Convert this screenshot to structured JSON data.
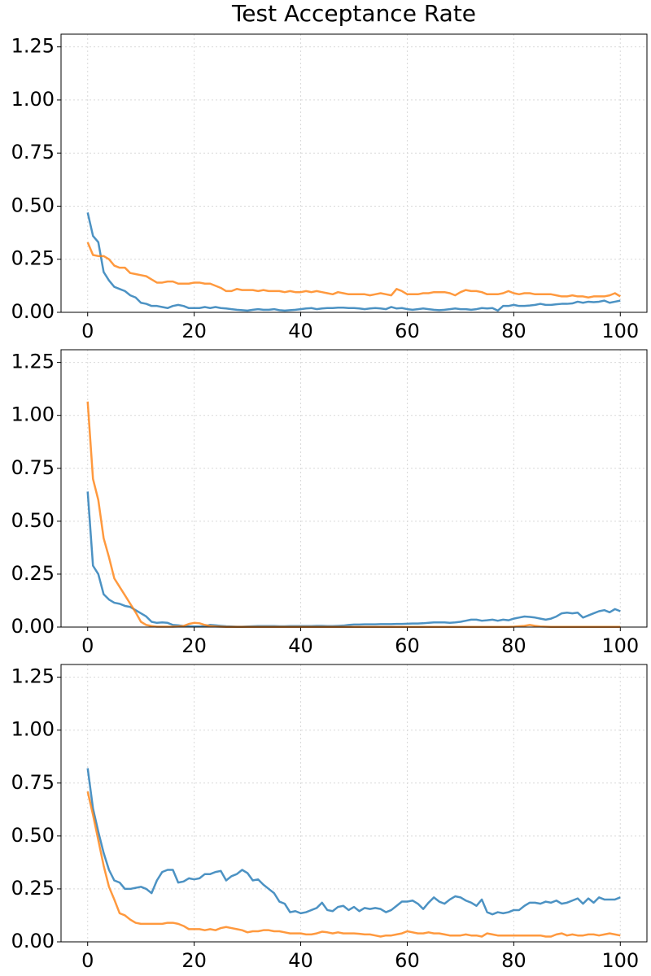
{
  "chart_data": [
    {
      "type": "line",
      "title": "Test Acceptance Rate",
      "x": [
        0,
        1,
        2,
        3,
        4,
        5,
        6,
        7,
        8,
        9,
        10,
        11,
        12,
        13,
        14,
        15,
        16,
        17,
        18,
        19,
        20,
        21,
        22,
        23,
        24,
        25,
        26,
        27,
        28,
        29,
        30,
        31,
        32,
        33,
        34,
        35,
        36,
        37,
        38,
        39,
        40,
        41,
        42,
        43,
        44,
        45,
        46,
        47,
        48,
        49,
        50,
        51,
        52,
        53,
        54,
        55,
        56,
        57,
        58,
        59,
        60,
        61,
        62,
        63,
        64,
        65,
        66,
        67,
        68,
        69,
        70,
        71,
        72,
        73,
        74,
        75,
        76,
        77,
        78,
        79,
        80,
        81,
        82,
        83,
        84,
        85,
        86,
        87,
        88,
        89,
        90,
        91,
        92,
        93,
        94,
        95,
        96,
        97,
        98,
        99,
        100
      ],
      "series": [
        {
          "color": "#1f77b4",
          "values": [
            0.47,
            0.36,
            0.33,
            0.19,
            0.15,
            0.12,
            0.11,
            0.1,
            0.08,
            0.07,
            0.045,
            0.04,
            0.03,
            0.03,
            0.025,
            0.02,
            0.03,
            0.035,
            0.03,
            0.02,
            0.02,
            0.02,
            0.025,
            0.02,
            0.025,
            0.02,
            0.018,
            0.015,
            0.012,
            0.01,
            0.008,
            0.012,
            0.015,
            0.012,
            0.012,
            0.015,
            0.01,
            0.008,
            0.01,
            0.012,
            0.015,
            0.018,
            0.02,
            0.015,
            0.018,
            0.02,
            0.02,
            0.022,
            0.022,
            0.02,
            0.02,
            0.018,
            0.015,
            0.018,
            0.02,
            0.018,
            0.015,
            0.025,
            0.018,
            0.02,
            0.015,
            0.012,
            0.015,
            0.018,
            0.015,
            0.012,
            0.01,
            0.012,
            0.015,
            0.018,
            0.015,
            0.015,
            0.012,
            0.015,
            0.02,
            0.018,
            0.02,
            0.008,
            0.03,
            0.03,
            0.035,
            0.03,
            0.03,
            0.032,
            0.035,
            0.04,
            0.035,
            0.035,
            0.038,
            0.04,
            0.04,
            0.042,
            0.05,
            0.045,
            0.05,
            0.048,
            0.05,
            0.055,
            0.045,
            0.05,
            0.055
          ]
        },
        {
          "color": "#ff7f0e",
          "values": [
            0.33,
            0.27,
            0.265,
            0.265,
            0.25,
            0.22,
            0.21,
            0.21,
            0.185,
            0.18,
            0.175,
            0.17,
            0.155,
            0.14,
            0.14,
            0.145,
            0.145,
            0.135,
            0.135,
            0.135,
            0.14,
            0.14,
            0.135,
            0.135,
            0.125,
            0.115,
            0.1,
            0.1,
            0.11,
            0.105,
            0.105,
            0.105,
            0.1,
            0.105,
            0.1,
            0.1,
            0.1,
            0.095,
            0.1,
            0.095,
            0.095,
            0.1,
            0.095,
            0.1,
            0.095,
            0.09,
            0.085,
            0.095,
            0.09,
            0.085,
            0.085,
            0.085,
            0.085,
            0.08,
            0.085,
            0.09,
            0.085,
            0.08,
            0.11,
            0.1,
            0.085,
            0.085,
            0.085,
            0.09,
            0.09,
            0.095,
            0.095,
            0.095,
            0.09,
            0.08,
            0.095,
            0.105,
            0.1,
            0.1,
            0.095,
            0.085,
            0.085,
            0.085,
            0.09,
            0.1,
            0.09,
            0.085,
            0.09,
            0.09,
            0.085,
            0.085,
            0.085,
            0.085,
            0.08,
            0.075,
            0.075,
            0.08,
            0.075,
            0.075,
            0.07,
            0.075,
            0.075,
            0.075,
            0.08,
            0.09,
            0.075
          ]
        }
      ],
      "xlim": [
        -5,
        105
      ],
      "ylim": [
        0,
        1.31
      ],
      "xticks": [
        0,
        20,
        40,
        60,
        80,
        100
      ],
      "yticks": [
        {
          "value": 0,
          "label": "0.00"
        },
        {
          "value": 0.25,
          "label": "0.25"
        },
        {
          "value": 0.5,
          "label": "0.50"
        },
        {
          "value": 0.75,
          "label": "0.75"
        },
        {
          "value": 1,
          "label": "1.00"
        },
        {
          "value": 1.25,
          "label": "1.25"
        }
      ],
      "grid": true
    },
    {
      "type": "line",
      "x": [
        0,
        1,
        2,
        3,
        4,
        5,
        6,
        7,
        8,
        9,
        10,
        11,
        12,
        13,
        14,
        15,
        16,
        17,
        18,
        19,
        20,
        21,
        22,
        23,
        24,
        25,
        26,
        27,
        28,
        29,
        30,
        31,
        32,
        33,
        34,
        35,
        36,
        37,
        38,
        39,
        40,
        41,
        42,
        43,
        44,
        45,
        46,
        47,
        48,
        49,
        50,
        51,
        52,
        53,
        54,
        55,
        56,
        57,
        58,
        59,
        60,
        61,
        62,
        63,
        64,
        65,
        66,
        67,
        68,
        69,
        70,
        71,
        72,
        73,
        74,
        75,
        76,
        77,
        78,
        79,
        80,
        81,
        82,
        83,
        84,
        85,
        86,
        87,
        88,
        89,
        90,
        91,
        92,
        93,
        94,
        95,
        96,
        97,
        98,
        99,
        100
      ],
      "series": [
        {
          "color": "#1f77b4",
          "values": [
            0.64,
            0.29,
            0.25,
            0.155,
            0.13,
            0.115,
            0.11,
            0.1,
            0.095,
            0.08,
            0.065,
            0.05,
            0.025,
            0.02,
            0.022,
            0.02,
            0.01,
            0.008,
            0.005,
            0.004,
            0.003,
            0.003,
            0.004,
            0.01,
            0.008,
            0.006,
            0.004,
            0.003,
            0.002,
            0.002,
            0.003,
            0.004,
            0.005,
            0.005,
            0.005,
            0.005,
            0.004,
            0.004,
            0.005,
            0.005,
            0.005,
            0.005,
            0.005,
            0.006,
            0.006,
            0.005,
            0.005,
            0.006,
            0.007,
            0.01,
            0.012,
            0.012,
            0.013,
            0.013,
            0.013,
            0.014,
            0.014,
            0.014,
            0.015,
            0.015,
            0.016,
            0.017,
            0.017,
            0.018,
            0.02,
            0.022,
            0.022,
            0.022,
            0.02,
            0.022,
            0.025,
            0.03,
            0.035,
            0.035,
            0.03,
            0.032,
            0.035,
            0.03,
            0.035,
            0.032,
            0.04,
            0.045,
            0.05,
            0.048,
            0.045,
            0.04,
            0.035,
            0.04,
            0.05,
            0.065,
            0.068,
            0.065,
            0.068,
            0.045,
            0.055,
            0.065,
            0.075,
            0.08,
            0.07,
            0.085,
            0.075
          ]
        },
        {
          "color": "#ff7f0e",
          "values": [
            1.065,
            0.7,
            0.6,
            0.42,
            0.33,
            0.23,
            0.19,
            0.15,
            0.11,
            0.07,
            0.025,
            0.01,
            0.005,
            0.002,
            0.002,
            0.002,
            0.002,
            0.003,
            0.005,
            0.015,
            0.02,
            0.018,
            0.01,
            0.005,
            0.003,
            0.002,
            0.001,
            0.001,
            0.001,
            0.001,
            0.001,
            0.001,
            0.001,
            0.001,
            0.001,
            0.001,
            0.001,
            0.001,
            0.001,
            0.001,
            0.001,
            0.001,
            0.001,
            0.001,
            0.001,
            0.001,
            0.001,
            0.001,
            0.001,
            0.001,
            0.001,
            0.001,
            0.001,
            0.001,
            0.001,
            0.001,
            0.001,
            0.001,
            0.001,
            0.001,
            0.001,
            0.001,
            0.001,
            0.001,
            0.001,
            0.001,
            0.001,
            0.001,
            0.001,
            0.001,
            0.001,
            0.001,
            0.001,
            0.001,
            0.001,
            0.001,
            0.001,
            0.001,
            0.001,
            0.001,
            0.002,
            0.004,
            0.006,
            0.01,
            0.006,
            0.003,
            0.002,
            0.001,
            0.001,
            0.001,
            0.001,
            0.001,
            0.001,
            0.001,
            0.001,
            0.001,
            0.001,
            0.001,
            0.001,
            0.001,
            0.001
          ]
        }
      ],
      "xlim": [
        -5,
        105
      ],
      "ylim": [
        0,
        1.31
      ],
      "xticks": [
        0,
        20,
        40,
        60,
        80,
        100
      ],
      "yticks": [
        {
          "value": 0,
          "label": "0.00"
        },
        {
          "value": 0.25,
          "label": "0.25"
        },
        {
          "value": 0.5,
          "label": "0.50"
        },
        {
          "value": 0.75,
          "label": "0.75"
        },
        {
          "value": 1,
          "label": "1.00"
        },
        {
          "value": 1.25,
          "label": "1.25"
        }
      ],
      "grid": true
    },
    {
      "type": "line",
      "x": [
        0,
        1,
        2,
        3,
        4,
        5,
        6,
        7,
        8,
        9,
        10,
        11,
        12,
        13,
        14,
        15,
        16,
        17,
        18,
        19,
        20,
        21,
        22,
        23,
        24,
        25,
        26,
        27,
        28,
        29,
        30,
        31,
        32,
        33,
        34,
        35,
        36,
        37,
        38,
        39,
        40,
        41,
        42,
        43,
        44,
        45,
        46,
        47,
        48,
        49,
        50,
        51,
        52,
        53,
        54,
        55,
        56,
        57,
        58,
        59,
        60,
        61,
        62,
        63,
        64,
        65,
        66,
        67,
        68,
        69,
        70,
        71,
        72,
        73,
        74,
        75,
        76,
        77,
        78,
        79,
        80,
        81,
        82,
        83,
        84,
        85,
        86,
        87,
        88,
        89,
        90,
        91,
        92,
        93,
        94,
        95,
        96,
        97,
        98,
        99,
        100
      ],
      "series": [
        {
          "color": "#1f77b4",
          "values": [
            0.82,
            0.63,
            0.52,
            0.42,
            0.34,
            0.29,
            0.28,
            0.25,
            0.25,
            0.255,
            0.26,
            0.25,
            0.23,
            0.29,
            0.33,
            0.34,
            0.34,
            0.28,
            0.285,
            0.3,
            0.295,
            0.3,
            0.32,
            0.32,
            0.33,
            0.335,
            0.29,
            0.31,
            0.32,
            0.34,
            0.325,
            0.29,
            0.295,
            0.27,
            0.25,
            0.23,
            0.19,
            0.18,
            0.14,
            0.145,
            0.135,
            0.14,
            0.15,
            0.16,
            0.185,
            0.15,
            0.145,
            0.165,
            0.17,
            0.15,
            0.165,
            0.145,
            0.16,
            0.155,
            0.16,
            0.155,
            0.14,
            0.15,
            0.17,
            0.19,
            0.19,
            0.195,
            0.18,
            0.155,
            0.185,
            0.21,
            0.19,
            0.18,
            0.2,
            0.215,
            0.21,
            0.195,
            0.185,
            0.17,
            0.2,
            0.14,
            0.13,
            0.14,
            0.135,
            0.14,
            0.15,
            0.15,
            0.17,
            0.185,
            0.185,
            0.18,
            0.19,
            0.185,
            0.195,
            0.18,
            0.185,
            0.195,
            0.205,
            0.18,
            0.205,
            0.185,
            0.21,
            0.2,
            0.2,
            0.2,
            0.21
          ]
        },
        {
          "color": "#ff7f0e",
          "values": [
            0.71,
            0.6,
            0.48,
            0.36,
            0.26,
            0.2,
            0.135,
            0.125,
            0.105,
            0.09,
            0.085,
            0.085,
            0.085,
            0.085,
            0.085,
            0.09,
            0.09,
            0.085,
            0.075,
            0.06,
            0.06,
            0.06,
            0.055,
            0.06,
            0.055,
            0.065,
            0.07,
            0.065,
            0.06,
            0.055,
            0.045,
            0.05,
            0.05,
            0.055,
            0.055,
            0.05,
            0.05,
            0.045,
            0.04,
            0.04,
            0.04,
            0.035,
            0.035,
            0.04,
            0.048,
            0.045,
            0.04,
            0.045,
            0.04,
            0.04,
            0.04,
            0.038,
            0.035,
            0.035,
            0.03,
            0.025,
            0.03,
            0.03,
            0.035,
            0.04,
            0.05,
            0.045,
            0.04,
            0.04,
            0.045,
            0.04,
            0.04,
            0.035,
            0.03,
            0.03,
            0.03,
            0.035,
            0.03,
            0.03,
            0.025,
            0.04,
            0.035,
            0.03,
            0.03,
            0.03,
            0.03,
            0.03,
            0.03,
            0.03,
            0.03,
            0.03,
            0.025,
            0.025,
            0.035,
            0.04,
            0.03,
            0.035,
            0.03,
            0.03,
            0.035,
            0.035,
            0.03,
            0.035,
            0.04,
            0.035,
            0.03
          ]
        }
      ],
      "xlim": [
        -5,
        105
      ],
      "ylim": [
        0,
        1.31
      ],
      "xticks": [
        0,
        20,
        40,
        60,
        80,
        100
      ],
      "yticks": [
        {
          "value": 0,
          "label": "0.00"
        },
        {
          "value": 0.25,
          "label": "0.25"
        },
        {
          "value": 0.5,
          "label": "0.50"
        },
        {
          "value": 0.75,
          "label": "0.75"
        },
        {
          "value": 1,
          "label": "1.00"
        },
        {
          "value": 1.25,
          "label": "1.25"
        }
      ],
      "grid": true
    }
  ]
}
